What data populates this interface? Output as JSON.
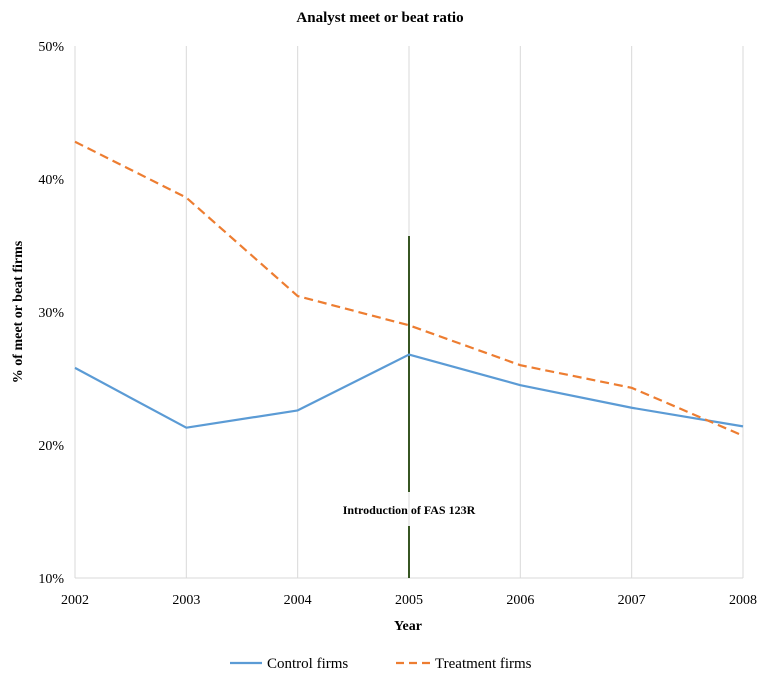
{
  "colors": {
    "control": "#5b9bd5",
    "treatment": "#ed7d31",
    "event_line": "#375623",
    "grid": "#d9d9d9"
  },
  "chart_data": {
    "type": "line",
    "title": "Analyst meet or beat ratio",
    "xlabel": "Year",
    "ylabel": "% of  meet or beat firms",
    "x": [
      "2002",
      "2003",
      "2004",
      "2005",
      "2006",
      "2007",
      "2008"
    ],
    "ylim": [
      0.1,
      0.5
    ],
    "yticks": [
      "10%",
      "20%",
      "30%",
      "40%",
      "50%"
    ],
    "grid": "vertical",
    "legend_position": "bottom",
    "series": [
      {
        "name": "Control firms",
        "style": "solid",
        "color": "#5b9bd5",
        "values": [
          0.258,
          0.213,
          0.226,
          0.268,
          0.245,
          0.228,
          0.214
        ]
      },
      {
        "name": "Treatment firms",
        "style": "dashed",
        "color": "#ed7d31",
        "values": [
          0.428,
          0.386,
          0.312,
          0.29,
          0.26,
          0.243,
          0.207
        ]
      }
    ],
    "annotations": [
      {
        "text": "Introduction of FAS 123R",
        "x": "2005",
        "type": "vertical-line"
      }
    ]
  }
}
